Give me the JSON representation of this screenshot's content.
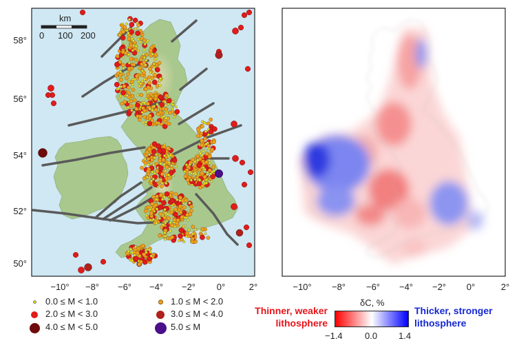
{
  "left_map": {
    "scale_bar": {
      "unit": "km",
      "ticks": [
        "0",
        "100",
        "200"
      ]
    },
    "lat_labels": [
      "58°",
      "56°",
      "54°",
      "52°",
      "50°"
    ],
    "lon_labels": [
      "−10°",
      "−8°",
      "−6°",
      "−4°",
      "−2°",
      "0°",
      "2°"
    ],
    "legend": [
      {
        "label": "0.0 ≤ M < 1.0",
        "color": "#e6e617"
      },
      {
        "label": "1.0 ≤ M < 2.0",
        "color": "#f0a21e"
      },
      {
        "label": "2.0 ≤ M < 3.0",
        "color": "#e21b1b"
      },
      {
        "label": "3.0 ≤ M < 4.0",
        "color": "#b0201c"
      },
      {
        "label": "4.0 ≤ M < 5.0",
        "color": "#6e0b0b"
      },
      {
        "label": "5.0 ≤ M",
        "color": "#4b0f8a"
      }
    ],
    "colors": {
      "sea": "#cfe8f3",
      "land": "#a9c88d",
      "highland": "#d8d1a8",
      "fault": "#5a5a5a"
    }
  },
  "right_map": {
    "lon_labels": [
      "−10°",
      "−8°",
      "−6°",
      "−4°",
      "−2°",
      "0°",
      "2°"
    ],
    "colorbar": {
      "title": "δC, %",
      "min_label": "−1.4",
      "mid_label": "0.0",
      "max_label": "1.4",
      "min_color": "#ff0000",
      "max_color": "#0000ff"
    },
    "left_caption_line1": "Thinner, weaker",
    "left_caption_line2": "lithosphere",
    "right_caption_line1": "Thicker, stronger",
    "right_caption_line2": "lithosphere",
    "caption_colors": {
      "thin": "#e8141c",
      "thick": "#1428d2"
    }
  }
}
